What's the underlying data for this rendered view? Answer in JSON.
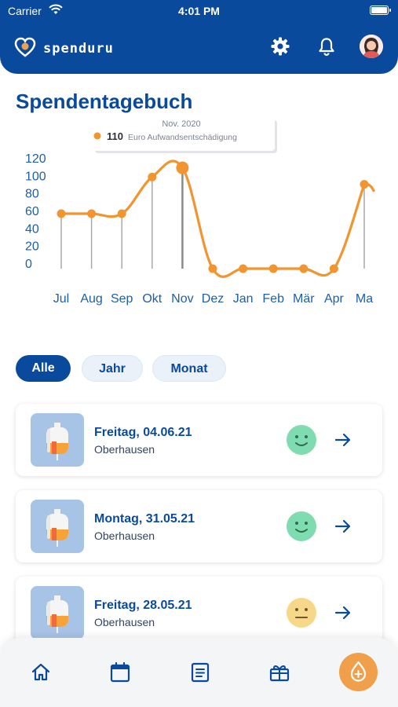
{
  "status_bar": {
    "carrier": "Carrier",
    "time": "4:01 PM"
  },
  "header": {
    "app_name": "spenduru"
  },
  "page": {
    "title": "Spendentagebuch"
  },
  "chart_data": {
    "type": "line",
    "categories": [
      "Jul",
      "Aug",
      "Sep",
      "Okt",
      "Nov",
      "Dez",
      "Jan",
      "Feb",
      "Mär",
      "Apr",
      "Ma"
    ],
    "series": [
      {
        "values": [
          60,
          60,
          60,
          100,
          110,
          0,
          0,
          0,
          0,
          0,
          92
        ]
      }
    ],
    "yticks": [
      "120",
      "100",
      "80",
      "60",
      "40",
      "20",
      "0"
    ],
    "ylim": [
      0,
      120
    ],
    "xlabel": "",
    "ylabel": "",
    "line_color": "#f0952f",
    "tooltip": {
      "title": "Nov. 2020",
      "value": "110",
      "label": "Euro Aufwandsentschädigung",
      "index": 4
    }
  },
  "filters": [
    {
      "label": "Alle",
      "active": true
    },
    {
      "label": "Jahr",
      "active": false
    },
    {
      "label": "Monat",
      "active": false
    }
  ],
  "donations": [
    {
      "date": "Freitag, 04.06.21",
      "city": "Oberhausen",
      "mood": "happy",
      "mood_color": "#7fdcb0"
    },
    {
      "date": "Montag, 31.05.21",
      "city": "Oberhausen",
      "mood": "happy",
      "mood_color": "#7fdcb0"
    },
    {
      "date": "Freitag, 28.05.21",
      "city": "Oberhausen",
      "mood": "neutral",
      "mood_color": "#f7d78a"
    }
  ],
  "nav": {
    "items": [
      "home-icon",
      "calendar-icon",
      "list-icon",
      "gift-icon",
      "donate-drop-icon"
    ],
    "accent": "#f0a04b"
  },
  "colors": {
    "brand": "#0a4a9c",
    "accent": "#f0952f"
  }
}
